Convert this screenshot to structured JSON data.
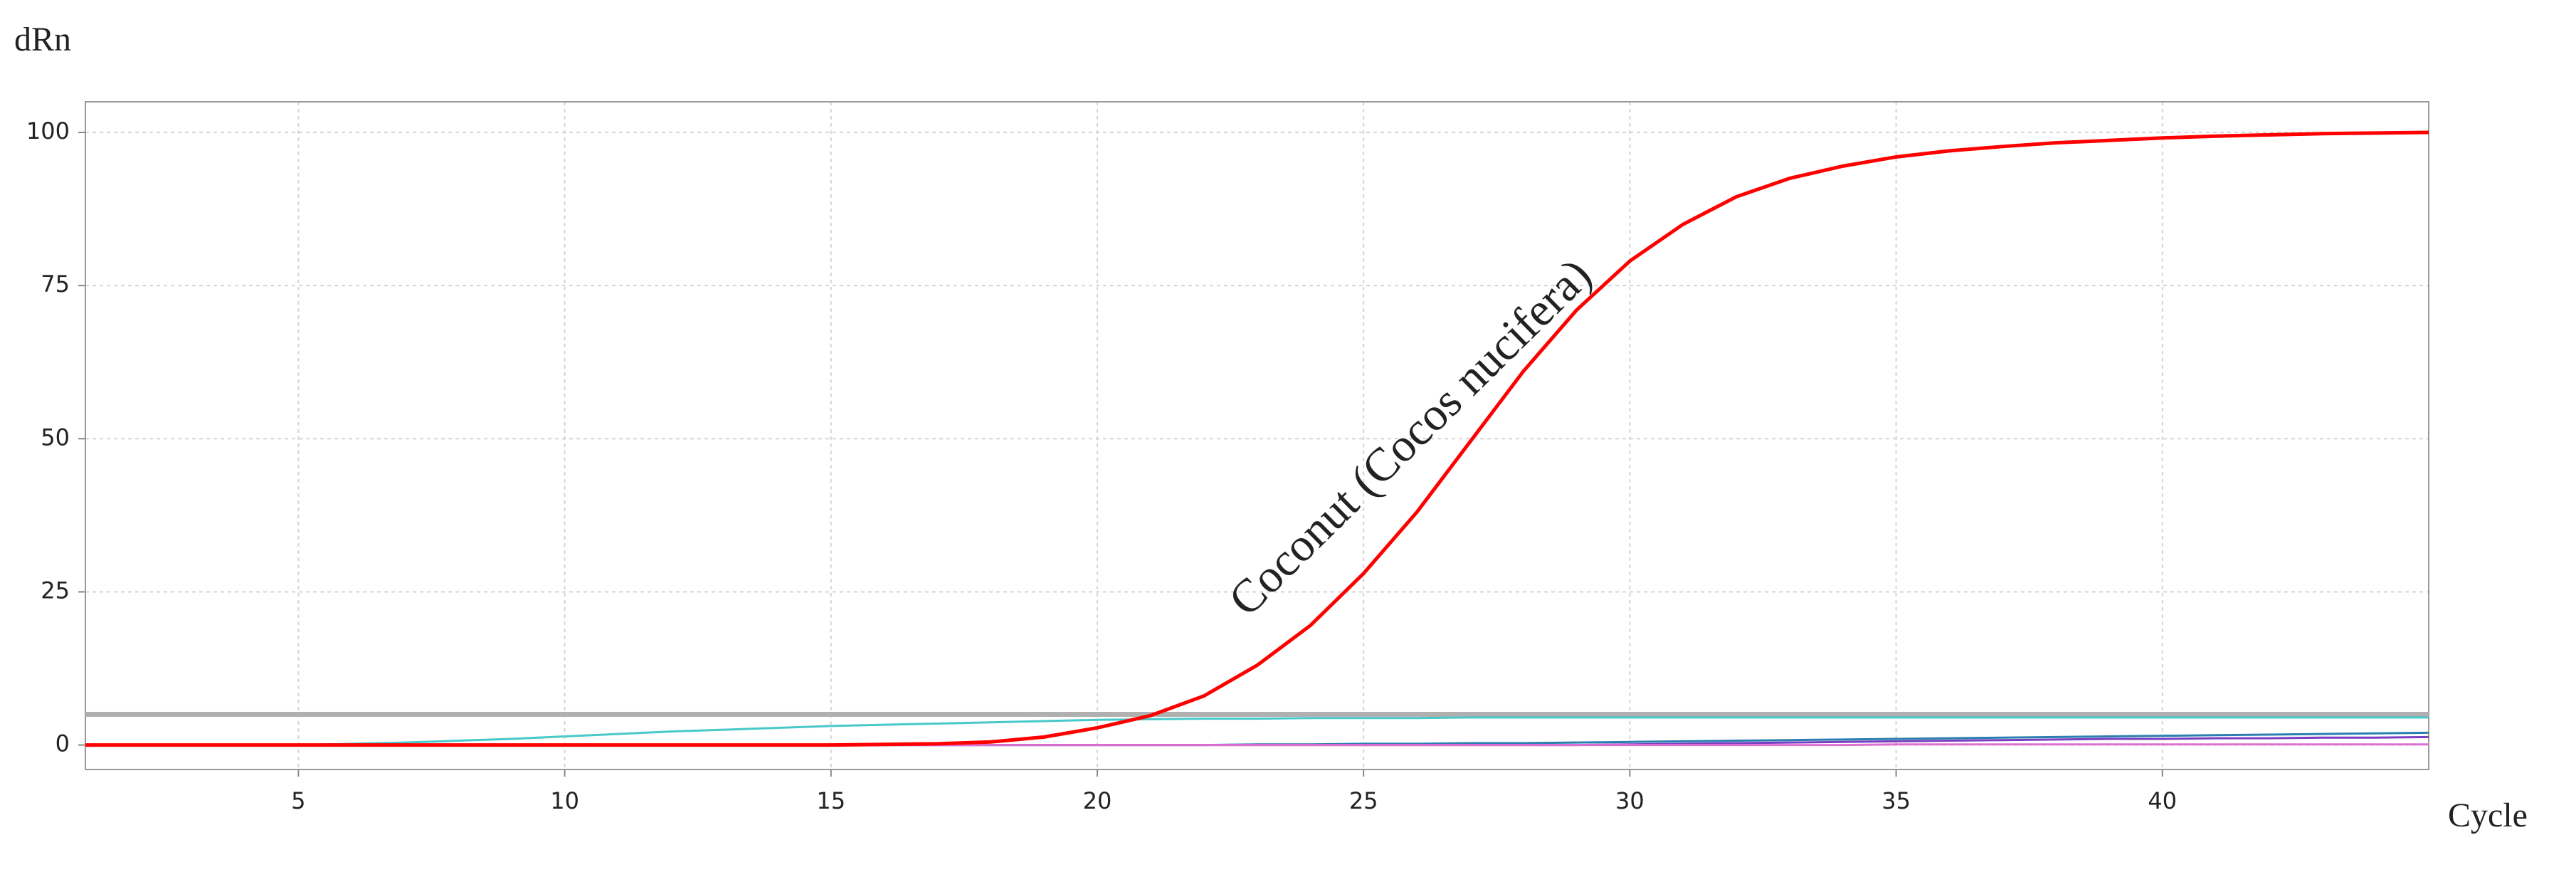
{
  "chart_data": {
    "type": "line",
    "y_label": "dRn",
    "x_label": "Cycle",
    "annotation": "Coconut (Cocos nucifera)",
    "x": [
      1,
      2,
      3,
      4,
      5,
      6,
      7,
      8,
      9,
      10,
      11,
      12,
      13,
      14,
      15,
      16,
      17,
      18,
      19,
      20,
      21,
      22,
      23,
      24,
      25,
      26,
      27,
      28,
      29,
      30,
      31,
      32,
      33,
      34,
      35,
      36,
      37,
      38,
      39,
      40,
      41,
      42,
      43,
      44,
      45
    ],
    "series": [
      {
        "color": "#48c8c8",
        "values": [
          0,
          0,
          0,
          0,
          0,
          0.2,
          0.4,
          0.7,
          1.0,
          1.4,
          1.8,
          2.2,
          2.5,
          2.8,
          3.1,
          3.3,
          3.5,
          3.7,
          3.9,
          4.1,
          4.2,
          4.3,
          4.3,
          4.4,
          4.4,
          4.4,
          4.5,
          4.5,
          4.5,
          4.5,
          4.5,
          4.5,
          4.5,
          4.5,
          4.5,
          4.5,
          4.5,
          4.5,
          4.5,
          4.5,
          4.5,
          4.5,
          4.5,
          4.5,
          4.5
        ]
      },
      {
        "color": "#2a7fb0",
        "values": [
          0,
          0,
          0,
          0,
          0,
          0,
          0,
          0,
          0,
          0,
          0,
          0,
          0,
          0,
          0,
          0,
          0,
          0,
          0,
          0,
          0,
          0,
          0.1,
          0.1,
          0.2,
          0.2,
          0.3,
          0.3,
          0.4,
          0.5,
          0.6,
          0.7,
          0.8,
          0.9,
          1.0,
          1.1,
          1.2,
          1.3,
          1.4,
          1.5,
          1.6,
          1.7,
          1.8,
          1.9,
          2.0
        ]
      },
      {
        "color": "#7a3fc0",
        "values": [
          0,
          0,
          0,
          0,
          0,
          0,
          0,
          0,
          0,
          0,
          0,
          0,
          0,
          0,
          0,
          0,
          0,
          0,
          0,
          0,
          0,
          0,
          0,
          0,
          0,
          0,
          0,
          0,
          0,
          0.1,
          0.2,
          0.3,
          0.4,
          0.5,
          0.6,
          0.7,
          0.8,
          0.9,
          1.0,
          1.0,
          1.1,
          1.1,
          1.2,
          1.2,
          1.3
        ]
      },
      {
        "color": "#e070d0",
        "values": [
          0,
          0,
          0,
          0,
          0,
          0,
          0,
          0,
          0,
          0,
          0,
          0,
          0,
          0,
          0,
          0,
          0,
          0,
          0,
          0,
          0,
          0,
          0,
          0,
          0,
          0,
          0,
          0,
          0,
          0,
          0,
          0,
          0,
          0,
          0.1,
          0.1,
          0.1,
          0.1,
          0.1,
          0.1,
          0.1,
          0.1,
          0.1,
          0.1,
          0.1
        ]
      },
      {
        "color": "#ff0000",
        "values": [
          0,
          0,
          0,
          0,
          0,
          0,
          0,
          0,
          0,
          0,
          0,
          0,
          0,
          0,
          0,
          0.1,
          0.2,
          0.5,
          1.3,
          2.8,
          4.8,
          8,
          13,
          19.5,
          28,
          38,
          49.5,
          61,
          71,
          79,
          85,
          89.5,
          92.5,
          94.5,
          96,
          97,
          97.7,
          98.3,
          98.7,
          99.1,
          99.4,
          99.6,
          99.8,
          99.9,
          100
        ]
      }
    ],
    "threshold": 5,
    "threshold_color": "#b0b0b0",
    "xlim": [
      1,
      45
    ],
    "ylim": [
      -4,
      105
    ],
    "xticks": [
      5,
      10,
      15,
      20,
      25,
      30,
      35,
      40
    ],
    "yticks": [
      0,
      25,
      50,
      75,
      100
    ],
    "grid": true
  }
}
